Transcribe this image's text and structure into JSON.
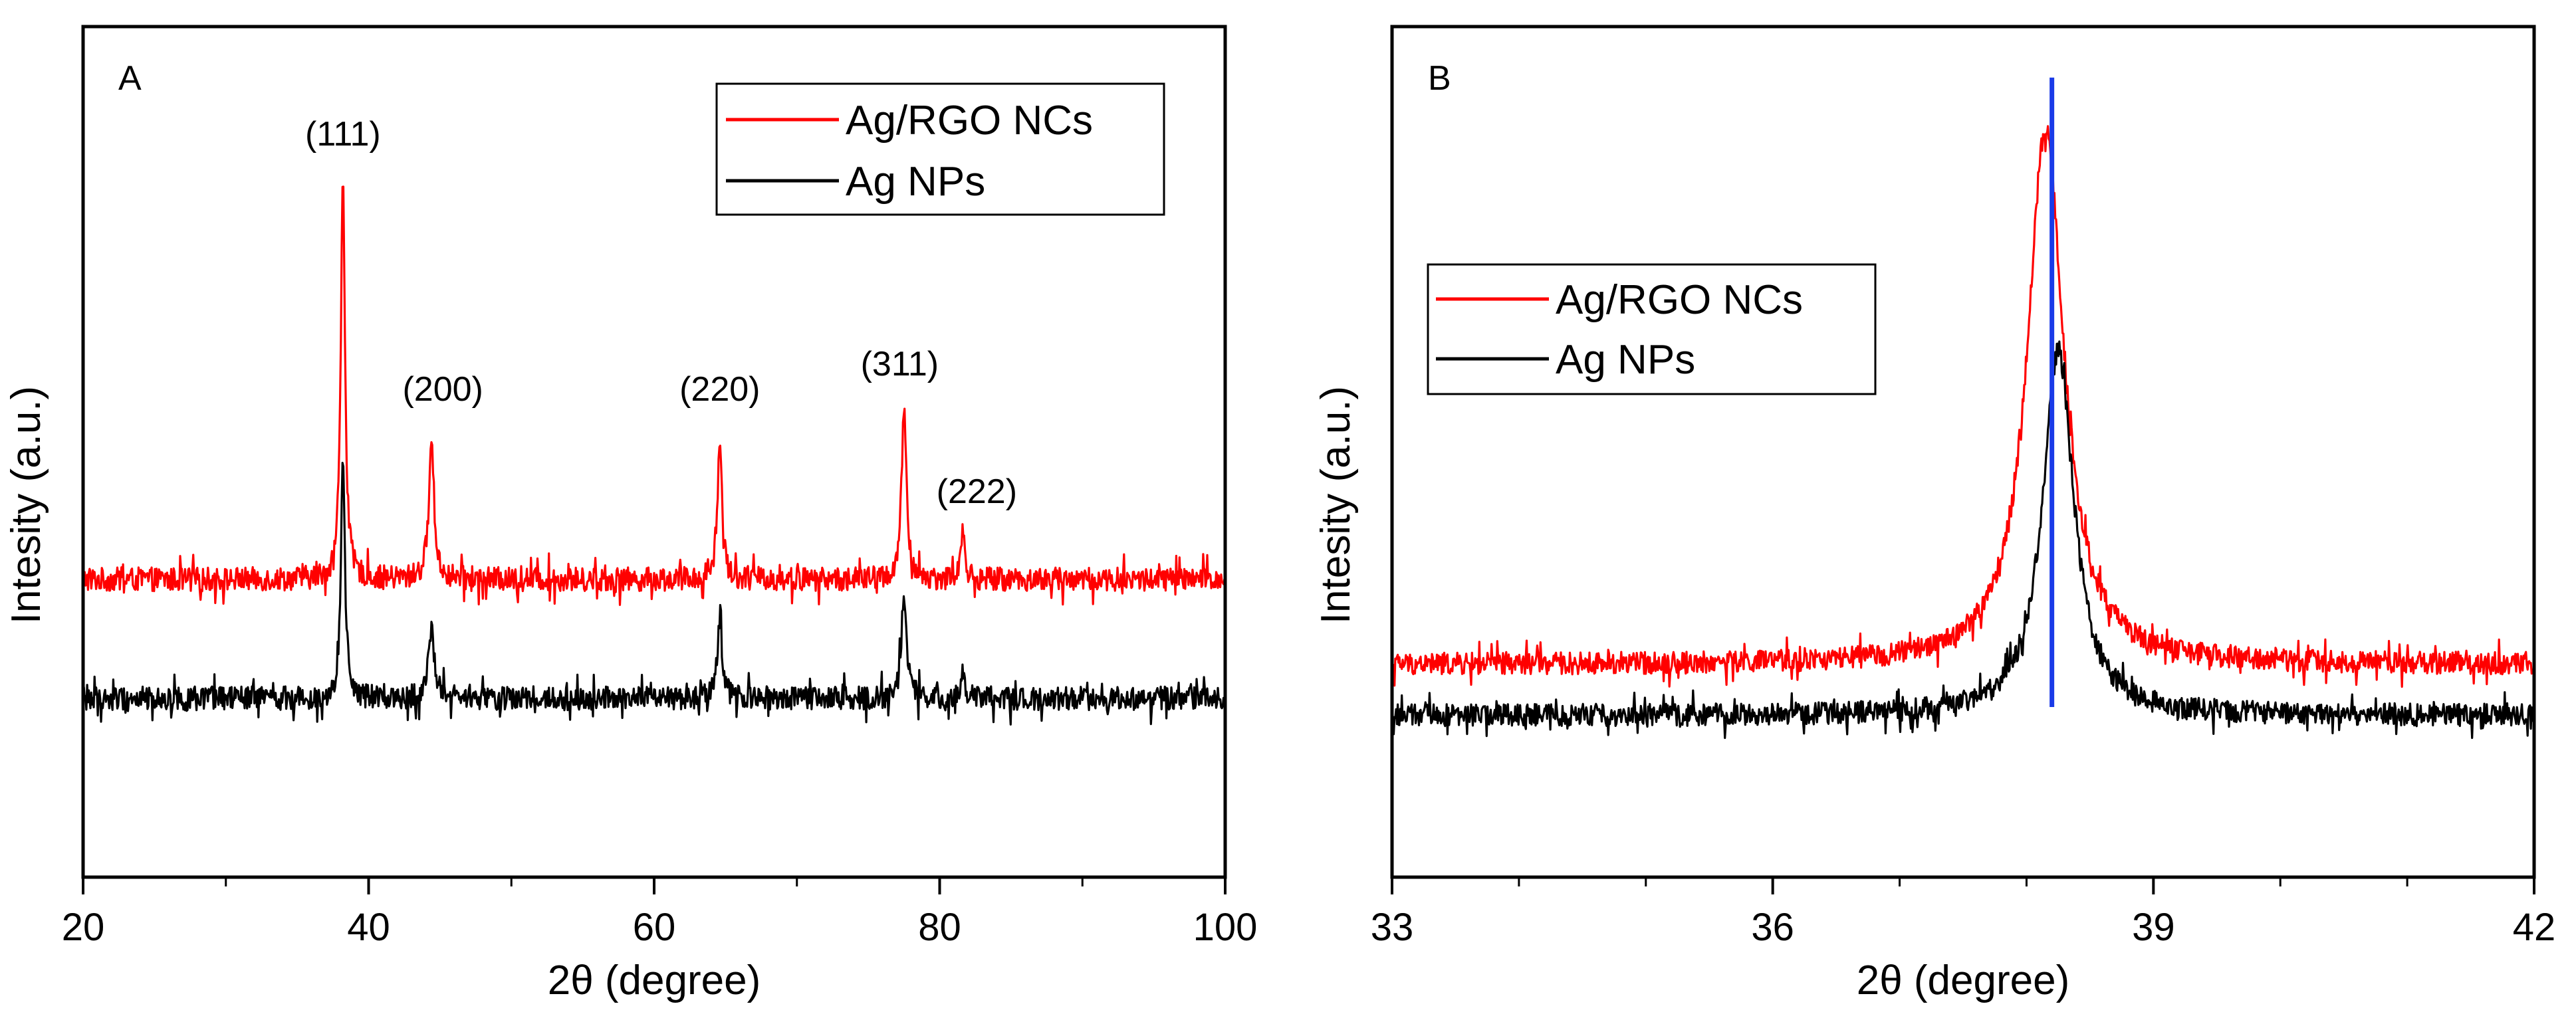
{
  "chart_data": [
    {
      "panel": "A",
      "type": "line",
      "xlabel": "2θ (degree)",
      "ylabel": "Intesity (a.u.)",
      "xlim": [
        20,
        100
      ],
      "ylim": [
        0,
        100
      ],
      "y_ticks_shown": false,
      "x_ticks": [
        20,
        40,
        60,
        80,
        100
      ],
      "x_tick_labels": [
        "20",
        "40",
        "60",
        "80",
        "100"
      ],
      "x_minor_step": 10,
      "legend_position": "top-right",
      "series": [
        {
          "name": "Ag/RGO NCs",
          "color": "#ff0000",
          "baseline": 35,
          "noise": 1.4,
          "peaks": [
            {
              "x": 38.2,
              "height": 48,
              "width": 0.35
            },
            {
              "x": 44.4,
              "height": 16,
              "width": 0.45
            },
            {
              "x": 64.6,
              "height": 16,
              "width": 0.4
            },
            {
              "x": 77.5,
              "height": 20,
              "width": 0.4
            },
            {
              "x": 81.6,
              "height": 5.5,
              "width": 0.35
            }
          ]
        },
        {
          "name": "Ag NPs",
          "color": "#000000",
          "baseline": 21,
          "noise": 1.4,
          "peaks": [
            {
              "x": 38.2,
              "height": 27,
              "width": 0.35
            },
            {
              "x": 44.4,
              "height": 9,
              "width": 0.45
            },
            {
              "x": 64.6,
              "height": 9,
              "width": 0.4
            },
            {
              "x": 77.5,
              "height": 13,
              "width": 0.4
            },
            {
              "x": 81.6,
              "height": 3,
              "width": 0.35
            }
          ]
        }
      ],
      "annotations": [
        {
          "text": "(111)",
          "x": 38.2,
          "y": 86
        },
        {
          "text": "(200)",
          "x": 45.2,
          "y": 56
        },
        {
          "text": "(220)",
          "x": 64.6,
          "y": 56
        },
        {
          "text": "(311)",
          "x": 77.2,
          "y": 59
        },
        {
          "text": "(222)",
          "x": 82.6,
          "y": 44
        }
      ]
    },
    {
      "panel": "B",
      "type": "line",
      "xlabel": "2θ (degree)",
      "ylabel": "Intesity (a.u.)",
      "xlim": [
        33,
        42
      ],
      "ylim": [
        0,
        100
      ],
      "y_ticks_shown": false,
      "x_ticks": [
        33,
        36,
        39,
        42
      ],
      "x_tick_labels": [
        "33",
        "36",
        "39",
        "42"
      ],
      "x_minor_step": 1,
      "legend_position": "upper-left",
      "reference_line": {
        "x": 38.2,
        "y_from": 20,
        "y_to": 94,
        "color": "#1a3be8"
      },
      "series": [
        {
          "name": "Ag/RGO NCs",
          "color": "#ff0000",
          "baseline": 25,
          "noise": 1.3,
          "peaks": [
            {
              "x": 38.15,
              "height": 63,
              "width": 0.35
            }
          ]
        },
        {
          "name": "Ag NPs",
          "color": "#000000",
          "baseline": 19,
          "noise": 1.3,
          "peaks": [
            {
              "x": 38.25,
              "height": 43,
              "width": 0.3
            }
          ]
        }
      ]
    }
  ]
}
